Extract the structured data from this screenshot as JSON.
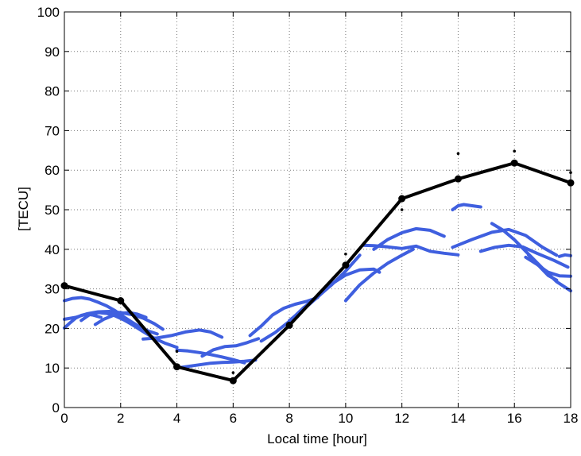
{
  "chart_data": {
    "type": "line",
    "title": "",
    "xlabel": "Local time [hour]",
    "ylabel": "[TECU]",
    "xlim": [
      0,
      18
    ],
    "ylim": [
      0,
      100
    ],
    "xticks": [
      0,
      2,
      4,
      6,
      8,
      10,
      12,
      14,
      16,
      18
    ],
    "yticks": [
      0,
      10,
      20,
      30,
      40,
      50,
      60,
      70,
      80,
      90,
      100
    ],
    "grid": true,
    "legend": "none",
    "colors": {
      "model": "#000000",
      "observations": "#3f5fdf",
      "grid": "#7a7a7a"
    },
    "series": [
      {
        "kind": "model",
        "x": [
          0,
          2,
          4,
          6,
          8,
          10,
          12,
          14,
          16,
          18
        ],
        "y": [
          30.8,
          27.0,
          10.3,
          6.8,
          20.8,
          36.0,
          52.8,
          57.8,
          61.8,
          56.8
        ]
      },
      {
        "kind": "observation-tracks",
        "tracks": [
          {
            "x": [
              0.0,
              0.3,
              0.6,
              0.9,
              1.2,
              1.5,
              1.8,
              2.1,
              2.4,
              2.7,
              3.0,
              3.3
            ],
            "y": [
              27.0,
              27.6,
              27.8,
              27.4,
              26.6,
              25.7,
              24.5,
              23.0,
              21.6,
              20.3,
              19.3,
              18.6
            ]
          },
          {
            "x": [
              0.0,
              0.4,
              0.8,
              1.2,
              1.6,
              2.0,
              2.4,
              2.8,
              3.2,
              3.5
            ],
            "y": [
              22.3,
              22.8,
              23.7,
              24.2,
              24.3,
              24.0,
              23.5,
              22.6,
              21.2,
              19.8
            ]
          },
          {
            "x": [
              0.0,
              0.2,
              0.4,
              0.6,
              0.8,
              1.0,
              1.3
            ],
            "y": [
              20.1,
              21.4,
              22.6,
              23.3,
              23.6,
              23.4,
              22.8
            ]
          },
          {
            "x": [
              0.6,
              0.9,
              1.2,
              1.5,
              1.8,
              2.1,
              2.4
            ],
            "y": [
              22.0,
              23.5,
              24.0,
              23.8,
              23.2,
              22.2,
              21.0
            ]
          },
          {
            "x": [
              1.1,
              1.4,
              1.7,
              2.0,
              2.3,
              2.6,
              2.9
            ],
            "y": [
              21.0,
              22.3,
              23.2,
              23.8,
              24.0,
              23.6,
              22.8
            ]
          },
          {
            "x": [
              1.6,
              2.0,
              2.4,
              2.8,
              3.2,
              3.6,
              4.0
            ],
            "y": [
              24.0,
              23.0,
              21.0,
              19.2,
              17.5,
              16.2,
              15.2
            ]
          },
          {
            "x": [
              2.8,
              3.3,
              3.8,
              4.3,
              4.8,
              5.2,
              5.6
            ],
            "y": [
              17.3,
              17.6,
              18.2,
              19.1,
              19.6,
              19.1,
              17.8
            ]
          },
          {
            "x": [
              4.0,
              4.4,
              4.8,
              5.2,
              5.6,
              6.0,
              6.4
            ],
            "y": [
              14.5,
              14.3,
              13.9,
              13.4,
              12.8,
              12.1,
              11.3
            ]
          },
          {
            "x": [
              4.0,
              4.4,
              4.8,
              5.2,
              5.6,
              6.0,
              6.4,
              6.8
            ],
            "y": [
              10.0,
              10.4,
              10.8,
              11.2,
              11.4,
              11.5,
              11.7,
              12.0
            ]
          },
          {
            "x": [
              4.9,
              5.3,
              5.7,
              6.1,
              6.5,
              6.9
            ],
            "y": [
              13.0,
              14.6,
              15.4,
              15.6,
              16.4,
              17.4
            ]
          },
          {
            "x": [
              6.6,
              7.0,
              7.4,
              7.8,
              8.2,
              8.6,
              9.0
            ],
            "y": [
              18.2,
              20.6,
              23.4,
              25.1,
              26.1,
              26.8,
              27.8
            ]
          },
          {
            "x": [
              7.0,
              7.5,
              8.0,
              8.5,
              9.0,
              9.5,
              10.0,
              10.5
            ],
            "y": [
              16.8,
              19.0,
              21.8,
              25.2,
              28.0,
              31.0,
              34.5,
              38.5
            ]
          },
          {
            "x": [
              8.0,
              8.5,
              9.0,
              9.5,
              10.0,
              10.5,
              11.0,
              11.2
            ],
            "y": [
              22.0,
              24.8,
              27.9,
              31.2,
              33.5,
              34.8,
              35.0,
              34.2
            ]
          },
          {
            "x": [
              10.0,
              10.5,
              11.0,
              11.5,
              12.0,
              12.4
            ],
            "y": [
              27.0,
              31.0,
              34.0,
              36.5,
              38.5,
              40.0
            ]
          },
          {
            "x": [
              10.6,
              11.0,
              11.5,
              12.0,
              12.5,
              13.0,
              13.5,
              14.0
            ],
            "y": [
              41.0,
              40.9,
              40.6,
              40.2,
              40.8,
              39.5,
              39.0,
              38.6
            ]
          },
          {
            "x": [
              11.0,
              11.5,
              12.0,
              12.5,
              13.0,
              13.5
            ],
            "y": [
              40.0,
              42.5,
              44.2,
              45.2,
              44.8,
              43.3
            ]
          },
          {
            "x": [
              13.8,
              14.0,
              14.2,
              14.5,
              14.8
            ],
            "y": [
              50.0,
              51.0,
              51.3,
              51.0,
              50.7
            ]
          },
          {
            "x": [
              13.8,
              14.5,
              15.2,
              15.8,
              16.4,
              17.0,
              17.5
            ],
            "y": [
              40.5,
              42.5,
              44.3,
              45.0,
              43.5,
              40.5,
              38.5
            ]
          },
          {
            "x": [
              14.8,
              15.3,
              15.8,
              16.3,
              16.8,
              17.4,
              17.9
            ],
            "y": [
              39.5,
              40.5,
              41.0,
              40.6,
              39.0,
              37.2,
              35.5
            ]
          },
          {
            "x": [
              15.2,
              15.6,
              16.0,
              16.5,
              17.0,
              17.5,
              18.0
            ],
            "y": [
              46.5,
              44.8,
              42.4,
              38.8,
              35.2,
              31.8,
              29.5
            ]
          },
          {
            "x": [
              16.4,
              16.8,
              17.2,
              17.6,
              18.0
            ],
            "y": [
              38.0,
              36.2,
              34.2,
              33.3,
              33.2
            ]
          },
          {
            "x": [
              16.5,
              16.9,
              17.2,
              17.5
            ],
            "y": [
              38.6,
              35.6,
              33.4,
              32.2
            ]
          },
          {
            "x": [
              17.6,
              17.8,
              18.0
            ],
            "y": [
              38.2,
              38.6,
              38.4
            ]
          }
        ]
      },
      {
        "kind": "model-spread-points",
        "x": [
          4,
          6,
          10,
          12,
          14,
          16,
          18
        ],
        "y": [
          14.2,
          8.8,
          38.8,
          50.0,
          64.2,
          64.8,
          59.4
        ]
      }
    ]
  }
}
